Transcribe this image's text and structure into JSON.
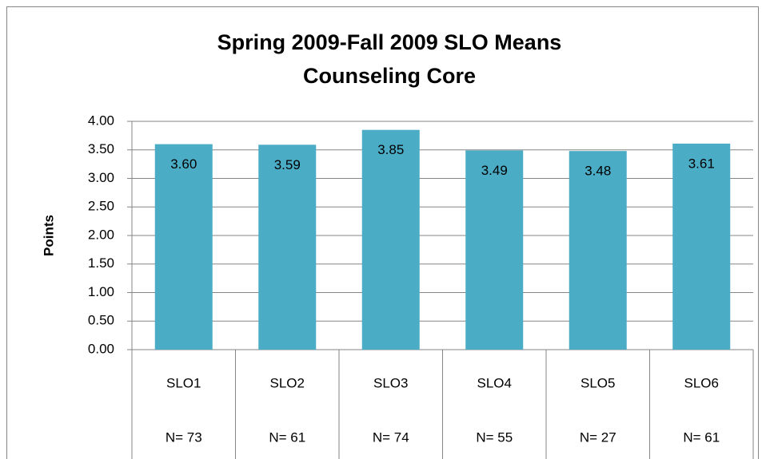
{
  "chart_data": {
    "type": "bar",
    "title": "Spring 2009-Fall 2009 SLO Means",
    "subtitle": "Counseling Core",
    "y_label": "Points",
    "categories": [
      "SLO1",
      "SLO2",
      "SLO3",
      "SLO4",
      "SLO5",
      "SLO6"
    ],
    "subcategories": [
      "N= 73",
      "N= 61",
      "N= 74",
      "N= 55",
      "N= 27",
      "N= 61"
    ],
    "values": [
      3.6,
      3.59,
      3.85,
      3.49,
      3.48,
      3.61
    ],
    "value_labels": [
      "3.60",
      "3.59",
      "3.85",
      "3.49",
      "3.48",
      "3.61"
    ],
    "color": "#4bacc6",
    "ylim": [
      0,
      4
    ],
    "yticks": [
      {
        "value": 0,
        "label": "0.00"
      },
      {
        "value": 0.5,
        "label": "0.50"
      },
      {
        "value": 1,
        "label": "1.00"
      },
      {
        "value": 1.5,
        "label": "1.50"
      },
      {
        "value": 2,
        "label": "2.00"
      },
      {
        "value": 2.5,
        "label": "2.50"
      },
      {
        "value": 3,
        "label": "3.00"
      },
      {
        "value": 3.5,
        "label": "3.50"
      },
      {
        "value": 4,
        "label": "4.00"
      }
    ],
    "grid": true
  }
}
